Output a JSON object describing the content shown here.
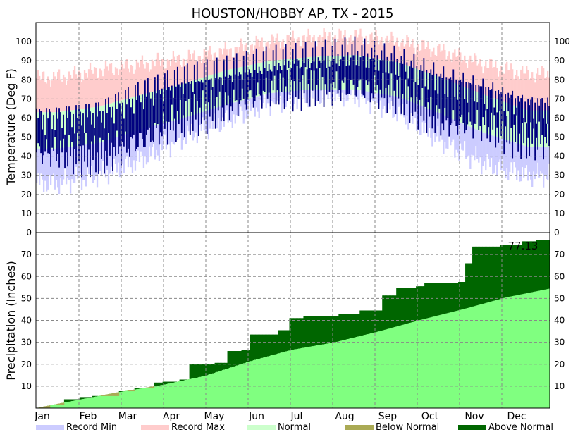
{
  "chart_data": [
    {
      "type": "bar",
      "title": "HOUSTON/HOBBY AP, TX - 2015",
      "ylabel": "Temperature (Deg F)",
      "xlabel": "",
      "ylim": [
        0,
        110
      ],
      "yticks": [
        0,
        10,
        20,
        30,
        40,
        50,
        60,
        70,
        80,
        90,
        100
      ],
      "x_tick_labels": [
        "Jan",
        "Feb",
        "Mar",
        "Apr",
        "May",
        "Jun",
        "Jul",
        "Aug",
        "Sep",
        "Oct",
        "Nov",
        "Dec"
      ],
      "month_start_days": [
        0,
        31,
        59,
        90,
        120,
        151,
        181,
        212,
        243,
        273,
        304,
        334
      ],
      "grid": true,
      "series": [
        {
          "name": "Record Min",
          "color": "#ccccff",
          "month_days": [
            15,
            45,
            74,
            105,
            135,
            166,
            196,
            227,
            258,
            288,
            319,
            349
          ],
          "values": [
            26,
            30,
            38,
            50,
            59,
            68,
            72,
            72,
            63,
            48,
            36,
            30
          ]
        },
        {
          "name": "Record Max",
          "color": "#ffcccc",
          "month_days": [
            15,
            45,
            74,
            105,
            135,
            166,
            196,
            227,
            258,
            288,
            319,
            349
          ],
          "values": [
            81,
            85,
            88,
            91,
            95,
            100,
            102,
            103,
            100,
            95,
            88,
            83
          ]
        },
        {
          "name": "Normal low",
          "color": "#ccffcc",
          "month_days": [
            15,
            45,
            74,
            105,
            135,
            166,
            196,
            227,
            258,
            288,
            319,
            349
          ],
          "values": [
            44,
            47,
            54,
            60,
            67,
            73,
            75,
            75,
            71,
            62,
            52,
            45
          ]
        },
        {
          "name": "Normal high",
          "color": "#ccffcc",
          "month_days": [
            15,
            45,
            74,
            105,
            135,
            166,
            196,
            227,
            258,
            288,
            319,
            349
          ],
          "values": [
            63,
            66,
            72,
            78,
            85,
            90,
            92,
            93,
            89,
            81,
            72,
            64
          ]
        },
        {
          "name": "Observed",
          "color": "#000080",
          "month_days": [
            15,
            45,
            74,
            105,
            135,
            166,
            196,
            227,
            258,
            288,
            319,
            349
          ],
          "low": [
            42,
            40,
            48,
            60,
            66,
            74,
            76,
            76,
            72,
            58,
            56,
            48
          ],
          "high": [
            60,
            62,
            72,
            80,
            84,
            89,
            91,
            94,
            89,
            80,
            74,
            66
          ]
        }
      ]
    },
    {
      "type": "area",
      "ylabel": "Precipitation (Inches)",
      "xlabel": "",
      "ylim": [
        0,
        80
      ],
      "yticks": [
        10,
        20,
        30,
        40,
        50,
        60,
        70
      ],
      "x_tick_labels": [
        "Jan",
        "Feb",
        "Mar",
        "Apr",
        "May",
        "Jun",
        "Jul",
        "Aug",
        "Sep",
        "Oct",
        "Nov",
        "Dec"
      ],
      "grid": true,
      "annotation": "77.13",
      "series": [
        {
          "name": "Normal",
          "color": "#80ff80",
          "x_days": [
            0,
            31,
            59,
            90,
            120,
            151,
            181,
            212,
            243,
            273,
            304,
            334,
            365
          ],
          "values": [
            0,
            3.9,
            7.3,
            10.6,
            14.7,
            21.2,
            26.5,
            30.0,
            34.9,
            40.2,
            45.2,
            50.5,
            54.5
          ]
        },
        {
          "name": "Observed",
          "color": "#006600",
          "x_days": [
            0,
            10,
            20,
            31,
            40,
            59,
            70,
            84,
            90,
            102,
            109,
            118,
            127,
            136,
            146,
            152,
            172,
            180,
            190,
            215,
            230,
            246,
            256,
            270,
            276,
            300,
            305,
            310,
            330,
            345,
            355,
            365
          ],
          "values": [
            0,
            1.5,
            4.0,
            5.0,
            5.5,
            7.7,
            9.0,
            11.6,
            12.0,
            13.0,
            20.0,
            20.0,
            20.6,
            26.0,
            26.4,
            33.5,
            35.5,
            41.0,
            41.9,
            43.0,
            44.5,
            51.3,
            54.7,
            55.5,
            57.0,
            57.5,
            66.0,
            73.6,
            74.5,
            76.0,
            76.5,
            77.13
          ]
        },
        {
          "name": "Below Normal",
          "color": "#aaaa55"
        },
        {
          "name": "Above Normal",
          "color": "#006600"
        }
      ]
    }
  ],
  "legend": [
    {
      "label": "Record Min",
      "color": "#ccccff"
    },
    {
      "label": "Record Max",
      "color": "#ffcccc"
    },
    {
      "label": "Normal",
      "color": "#ccffcc"
    },
    {
      "label": "Below Normal",
      "color": "#aaaa55"
    },
    {
      "label": "Above Normal",
      "color": "#006600"
    }
  ]
}
